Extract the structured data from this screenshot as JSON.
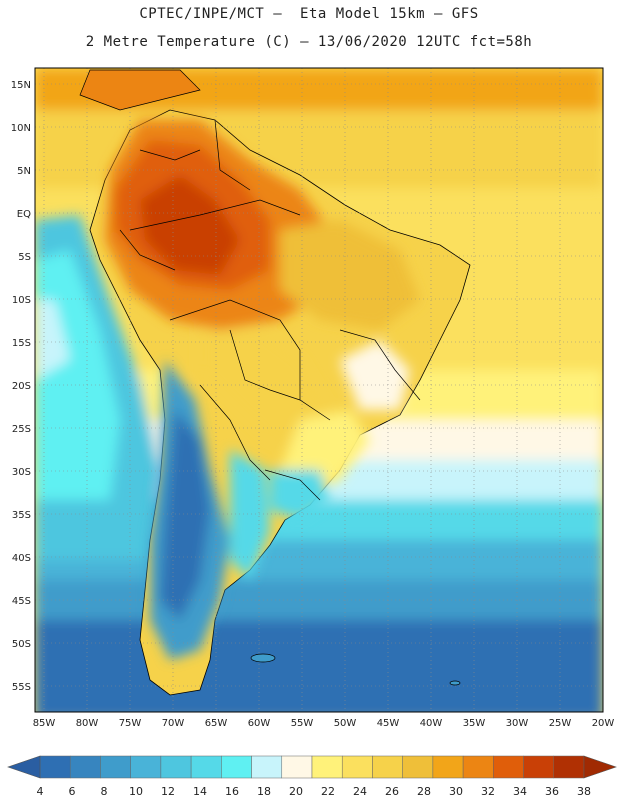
{
  "header": {
    "title_line1": "CPTEC/INPE/MCT –  Eta Model 15km – GFS",
    "title_line2": "2 Metre Temperature (C) – 13/06/2020 12UTC fct=58h"
  },
  "map": {
    "lat_labels": [
      "15N",
      "10N",
      "5N",
      "EQ",
      "5S",
      "10S",
      "15S",
      "20S",
      "25S",
      "30S",
      "35S",
      "40S",
      "45S",
      "50S",
      "55S"
    ],
    "lon_labels": [
      "85W",
      "80W",
      "75W",
      "70W",
      "65W",
      "60W",
      "55W",
      "50W",
      "45W",
      "40W",
      "35W",
      "30W",
      "25W",
      "20W"
    ]
  },
  "colorbar": {
    "ticks": [
      "4",
      "6",
      "8",
      "10",
      "12",
      "14",
      "16",
      "18",
      "20",
      "22",
      "24",
      "26",
      "28",
      "30",
      "32",
      "34",
      "36",
      "38"
    ],
    "colors": [
      "#2e6fb3",
      "#3785bf",
      "#3f9ccb",
      "#49b3d8",
      "#4ec6df",
      "#55d9e8",
      "#5ff0f2",
      "#c8f4fb",
      "#fff8e6",
      "#fff27a",
      "#fbe05e",
      "#f6d24a",
      "#efbf39",
      "#f2a519",
      "#ec8513",
      "#e05e0a",
      "#c94006",
      "#b03003"
    ]
  }
}
